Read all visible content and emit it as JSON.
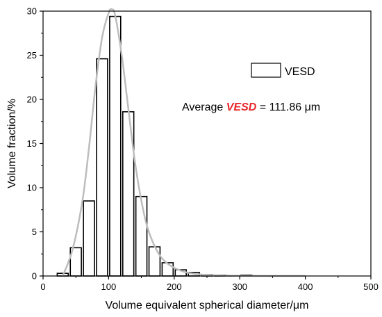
{
  "chart_data": {
    "type": "bar",
    "title": "",
    "xlabel": "Volume equivalent spherical diameter/μm",
    "ylabel": "Volume fraction/%",
    "xlim": [
      0,
      500
    ],
    "ylim": [
      0,
      30
    ],
    "x_ticks": [
      0,
      100,
      200,
      300,
      400,
      500
    ],
    "y_ticks": [
      0,
      5,
      10,
      15,
      20,
      25,
      30
    ],
    "grid": false,
    "legend_position": "top-right",
    "series": [
      {
        "name": "VESD",
        "type": "bar",
        "x": [
          30,
          50,
          70,
          90,
          110,
          130,
          150,
          170,
          190,
          210,
          230,
          250,
          270,
          290,
          310
        ],
        "values": [
          0.3,
          3.2,
          8.5,
          24.6,
          29.4,
          18.6,
          9.0,
          3.3,
          1.5,
          0.7,
          0.4,
          0.15,
          0.1,
          0.05,
          0.1
        ],
        "bin_width": 20
      },
      {
        "type": "line",
        "color": "#bdbdbd",
        "x": [
          30,
          45,
          60,
          70,
          80,
          90,
          100,
          105,
          110,
          120,
          130,
          140,
          150,
          160,
          175,
          190,
          210,
          230,
          260,
          300,
          350,
          400
        ],
        "y": [
          0.0,
          3.0,
          8.5,
          14.5,
          21.5,
          27.0,
          29.8,
          30.2,
          29.5,
          25.0,
          19.0,
          13.0,
          8.5,
          5.3,
          2.7,
          1.4,
          0.6,
          0.25,
          0.08,
          0.02,
          0.0,
          0.0
        ]
      }
    ],
    "legend": [
      {
        "label": "VESD"
      }
    ],
    "annotation": {
      "prefix": "Average ",
      "emphasis": "VESD",
      "emphasis_color": "#e8262a",
      "suffix": " = 111.86 μm"
    }
  }
}
